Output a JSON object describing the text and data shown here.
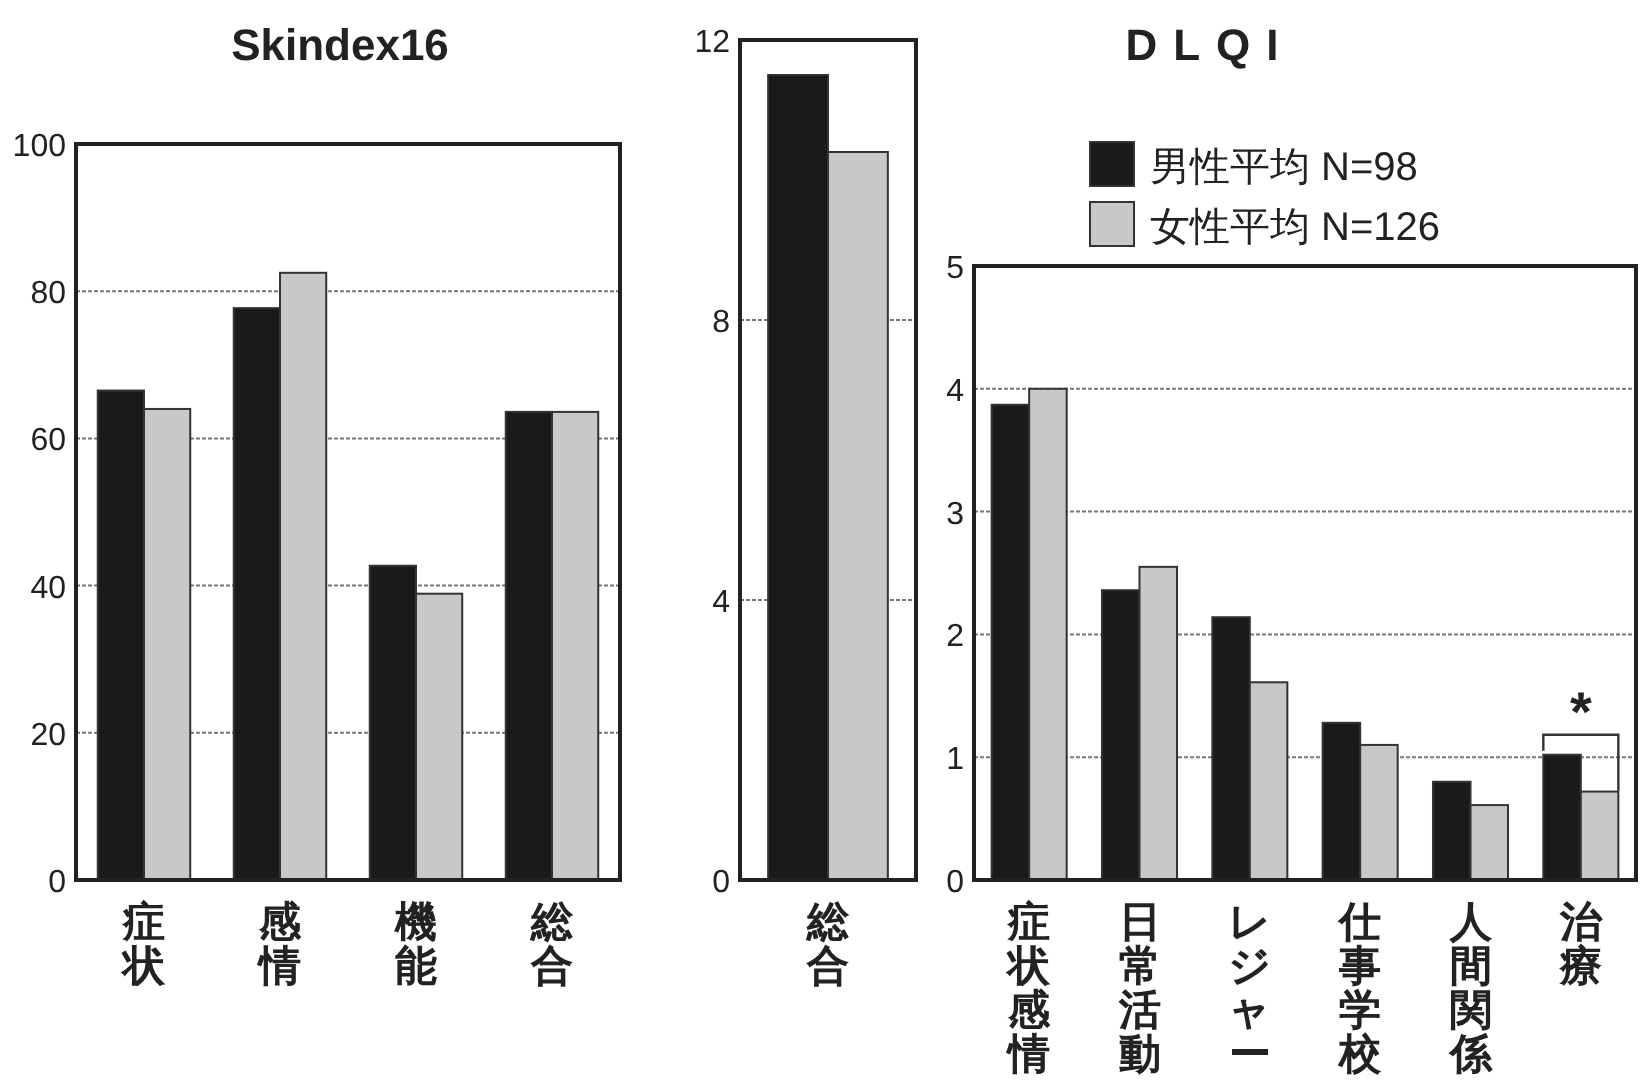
{
  "chart_data": [
    {
      "type": "bar",
      "title": "Skindex16",
      "categories": [
        "症状",
        "感情",
        "機能",
        "総合"
      ],
      "series": [
        {
          "color": "#1a1a1a",
          "values": [
            66.5,
            77.7,
            42.7,
            63.6
          ]
        },
        {
          "color": "#c8c8c8",
          "values": [
            64,
            82.5,
            38.9,
            63.6
          ]
        }
      ],
      "ylim": [
        0,
        100
      ],
      "yticks": [
        0,
        20,
        40,
        60,
        80,
        100
      ],
      "grid": "y"
    },
    {
      "type": "bar",
      "categories": [
        "総合"
      ],
      "series": [
        {
          "color": "#1a1a1a",
          "values": [
            11.5
          ]
        },
        {
          "color": "#c8c8c8",
          "values": [
            10.4
          ]
        }
      ],
      "ylim": [
        0,
        12
      ],
      "yticks": [
        0,
        4,
        8,
        12
      ],
      "grid": "y"
    },
    {
      "type": "bar",
      "title": "DLQI",
      "categories": [
        "症状感情",
        "日常活動",
        "レジャー",
        "仕事学校",
        "人間関係",
        "治療"
      ],
      "series": [
        {
          "name": "男性平均  N=98",
          "color": "#1a1a1a",
          "values": [
            3.87,
            2.36,
            2.14,
            1.28,
            0.8,
            1.02
          ]
        },
        {
          "name": "女性平均  N=126",
          "color": "#c8c8c8",
          "values": [
            4.0,
            2.55,
            1.61,
            1.1,
            0.61,
            0.72
          ]
        }
      ],
      "ylim": [
        0,
        5
      ],
      "yticks": [
        0,
        1,
        2,
        3,
        4,
        5
      ],
      "grid": "y",
      "legend": "top",
      "annotations": [
        {
          "text": "*",
          "x": "治療",
          "y": 1.02
        }
      ]
    }
  ]
}
